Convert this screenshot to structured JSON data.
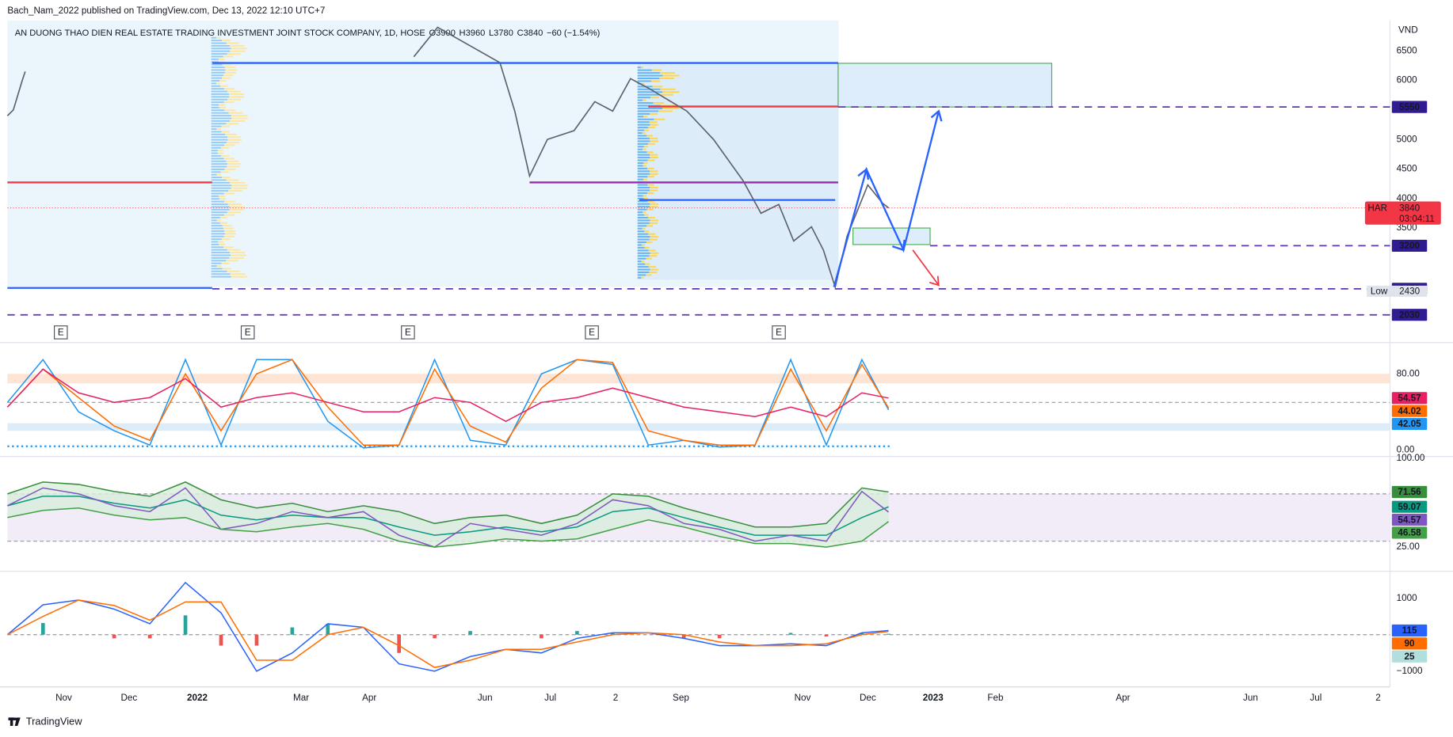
{
  "header": {
    "publisher": "Bach_Nam_2022 published on TradingView.com, Dec 13, 2022 12:10 UTC+7",
    "brand": "TradingView"
  },
  "chart_data": [
    {
      "type": "line",
      "title": "AN DUONG THAO DIEN REAL ESTATE TRADING INVESTMENT JOINT STOCK COMPANY, 1D, HOSE",
      "ohlc": [
        "O3900",
        "H3960",
        "L3780",
        "C3840",
        "−60 (−1.54%)"
      ],
      "unit": "VND",
      "color": "#5d606b",
      "x": [
        0,
        2,
        5,
        6,
        70,
        137,
        145,
        166,
        171,
        176,
        182,
        191,
        198,
        204,
        210,
        216,
        229,
        238,
        248,
        254,
        260,
        265,
        271,
        275,
        279,
        283,
        290,
        295,
        297
      ],
      "values": [
        5400,
        5500,
        6000,
        6150,
        null,
        6400,
        6900,
        6300,
        5480,
        4380,
        5000,
        5150,
        5640,
        5480,
        6030,
        5870,
        5480,
        5000,
        4300,
        3750,
        3900,
        3280,
        3520,
        3130,
        2500,
        3360,
        4230,
        3920,
        3840
      ],
      "xlim": [
        0,
        466
      ],
      "xticks": [
        {
          "value": 19,
          "label": "Nov"
        },
        {
          "value": 41,
          "label": "Dec"
        },
        {
          "value": 64,
          "label": "2022"
        },
        {
          "value": 99,
          "label": "Mar"
        },
        {
          "value": 122,
          "label": "Apr"
        },
        {
          "value": 161,
          "label": "Jun"
        },
        {
          "value": 183,
          "label": "Jul"
        },
        {
          "value": 205,
          "label": "2"
        },
        {
          "value": 227,
          "label": "Sep"
        },
        {
          "value": 268,
          "label": "Nov"
        },
        {
          "value": 290,
          "label": "Dec"
        },
        {
          "value": 312,
          "label": "2023"
        },
        {
          "value": 333,
          "label": "Feb"
        },
        {
          "value": 376,
          "label": "Apr"
        },
        {
          "value": 419,
          "label": "Jun"
        },
        {
          "value": 441,
          "label": "Jul"
        },
        {
          "value": 462,
          "label": "2"
        }
      ],
      "ylim": [
        1560,
        7017
      ],
      "yticks": [
        3500,
        4000,
        4500,
        5000,
        6000,
        6500
      ],
      "levels": [
        {
          "value": 6295,
          "x": [
            69,
            280
          ],
          "color": "#2962ff"
        },
        {
          "value": 4273,
          "x": [
            0,
            69
          ],
          "color": "#f23645"
        },
        {
          "value": 5558,
          "x": [
            216,
            280
          ],
          "color": "#f23645"
        },
        {
          "value": 4273,
          "x": [
            176,
            280
          ],
          "color": "#9c27b0"
        },
        {
          "value": 3975,
          "x": [
            213,
            279
          ],
          "color": "#2962ff"
        },
        {
          "value": 2485,
          "x": [
            0,
            69
          ],
          "color": "#2962ff"
        }
      ],
      "zones": [
        {
          "range": [
            5550,
            6290
          ],
          "x": [
            280,
            352
          ]
        },
        {
          "range": [
            3220,
            3500
          ],
          "x": [
            285,
            311
          ]
        }
      ],
      "dashed_levels": [
        {
          "value": 5550,
          "x0": 280
        },
        {
          "value": 3200,
          "x0": 311
        },
        {
          "value": 2470,
          "x0": 69
        },
        {
          "value": 2030,
          "x0": 0
        }
      ],
      "level_color": "#5e35b1",
      "label_color": "#311b92",
      "last_price": {
        "symbol": "HAR",
        "value": 3840,
        "countdown": "03:04:11",
        "color": "#f23645"
      },
      "low": {
        "label": "Low",
        "value": 2430
      },
      "events": {
        "x": [
          18,
          81,
          135,
          197,
          260
        ],
        "label": "E"
      }
    },
    {
      "type": "line",
      "x": [
        0,
        12,
        24,
        36,
        48,
        60,
        72,
        84,
        96,
        108,
        120,
        132,
        144,
        156,
        168,
        180,
        192,
        204,
        216,
        228,
        240,
        252,
        264,
        276,
        288,
        297
      ],
      "series": [
        {
          "color": "#2196f3",
          "values": [
            50,
            95,
            40,
            20,
            5,
            95,
            5,
            95,
            95,
            30,
            2,
            5,
            95,
            10,
            5,
            80,
            95,
            90,
            5,
            10,
            3,
            5,
            95,
            5,
            95,
            42.05
          ]
        },
        {
          "color": "#ff6d00",
          "values": [
            45,
            85,
            55,
            25,
            10,
            80,
            20,
            80,
            95,
            45,
            5,
            5,
            85,
            25,
            8,
            65,
            95,
            92,
            20,
            10,
            5,
            5,
            85,
            20,
            90,
            44.02
          ]
        },
        {
          "color": "#e91e63",
          "values": [
            45,
            85,
            60,
            50,
            55,
            75,
            45,
            55,
            60,
            50,
            40,
            40,
            55,
            50,
            30,
            50,
            55,
            65,
            55,
            45,
            40,
            35,
            45,
            35,
            60,
            54.57
          ]
        }
      ],
      "ylim": [
        -7,
        113
      ],
      "yticks": [
        {
          "value": 80,
          "label": "80.00"
        },
        {
          "value": 0,
          "label": "0.00"
        }
      ],
      "bands": [
        {
          "range": [
            70,
            80
          ],
          "color": "#fde4d4"
        },
        {
          "range": [
            20,
            28
          ],
          "color": "#dcedf9"
        }
      ],
      "levels": [
        50
      ]
    },
    {
      "type": "line",
      "x": [
        0,
        12,
        24,
        36,
        48,
        60,
        72,
        84,
        96,
        108,
        120,
        132,
        144,
        156,
        168,
        180,
        192,
        204,
        216,
        228,
        240,
        252,
        264,
        276,
        288,
        297
      ],
      "series": [
        {
          "color": "#388e3c",
          "values": [
            70,
            80,
            78,
            72,
            68,
            80,
            65,
            58,
            62,
            55,
            60,
            55,
            45,
            50,
            52,
            45,
            52,
            70,
            68,
            58,
            50,
            42,
            42,
            45,
            75,
            71.56
          ]
        },
        {
          "color": "#089981",
          "values": [
            60,
            68,
            68,
            62,
            58,
            65,
            52,
            48,
            52,
            50,
            50,
            42,
            35,
            38,
            42,
            38,
            42,
            55,
            58,
            50,
            42,
            35,
            35,
            35,
            50,
            59.07
          ]
        },
        {
          "color": "#7e57c2",
          "values": [
            60,
            75,
            70,
            60,
            55,
            75,
            40,
            45,
            55,
            50,
            55,
            35,
            25,
            45,
            40,
            35,
            45,
            65,
            60,
            45,
            40,
            30,
            35,
            30,
            72,
            54.57
          ]
        },
        {
          "color": "#43a047",
          "values": [
            50,
            56,
            58,
            52,
            48,
            50,
            40,
            38,
            42,
            45,
            40,
            30,
            25,
            28,
            32,
            30,
            32,
            40,
            48,
            42,
            34,
            28,
            28,
            25,
            30,
            46.58
          ]
        }
      ],
      "channel_fill": "#d9eedb",
      "ylim": [
        4.6,
        101.6
      ],
      "yticks": [
        {
          "value": 100,
          "label": "100.00"
        },
        {
          "value": 25,
          "label": "25.00"
        }
      ],
      "bands": [
        {
          "range": [
            30,
            70
          ],
          "color": "#f1ecf8"
        }
      ],
      "levels": [
        70,
        30
      ]
    },
    {
      "type": "line",
      "x": [
        0,
        12,
        24,
        36,
        48,
        60,
        72,
        84,
        96,
        108,
        120,
        132,
        144,
        156,
        168,
        180,
        192,
        204,
        216,
        228,
        240,
        252,
        264,
        276,
        288,
        297
      ],
      "series": [
        {
          "color": "#2962ff",
          "values": [
            0,
            820,
            950,
            700,
            300,
            1430,
            600,
            -1000,
            -500,
            300,
            200,
            -800,
            -1000,
            -600,
            -400,
            -500,
            -100,
            50,
            50,
            -100,
            -300,
            -300,
            -250,
            -300,
            50,
            115
          ]
        },
        {
          "color": "#ff6d00",
          "values": [
            0,
            500,
            950,
            800,
            400,
            900,
            900,
            -700,
            -700,
            0,
            200,
            -300,
            -900,
            -700,
            -400,
            -400,
            -200,
            0,
            50,
            0,
            -200,
            -300,
            -300,
            -250,
            0,
            90
          ]
        }
      ],
      "histogram": {
        "values": [
          0,
          320,
          0,
          -100,
          -100,
          530,
          -300,
          -300,
          200,
          300,
          0,
          -500,
          -100,
          100,
          0,
          -100,
          100,
          50,
          0,
          -100,
          -100,
          0,
          50,
          -50,
          50,
          25
        ],
        "colors": [
          "#26a69a",
          "#ef5350"
        ],
        "label_color": "#b2dfdb"
      },
      "ylim": [
        -1435,
        1740
      ],
      "yticks": [
        1000,
        {
          "value": -1000,
          "label": "−1000"
        }
      ],
      "levels": [
        0
      ]
    }
  ]
}
